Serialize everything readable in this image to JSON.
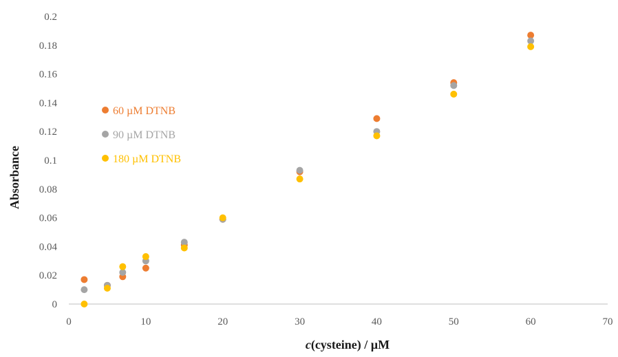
{
  "chart_data": {
    "type": "scatter",
    "title": "",
    "xlabel_italic": "c",
    "xlabel_rest": "(cysteine) / µM",
    "ylabel": "Absorbance",
    "xlim": [
      0,
      70
    ],
    "ylim": [
      0,
      0.2
    ],
    "x_ticks": [
      "0",
      "10",
      "20",
      "30",
      "40",
      "50",
      "60",
      "70"
    ],
    "y_ticks": [
      "0",
      "0.02",
      "0.04",
      "0.06",
      "0.08",
      "0.1",
      "0.12",
      "0.14",
      "0.16",
      "0.18",
      "0.2"
    ],
    "grid": false,
    "legend_position": "left",
    "series": [
      {
        "name": "60 µM DTNB",
        "color": "#ED7D31",
        "x": [
          2,
          5,
          7,
          10,
          15,
          20,
          30,
          40,
          50,
          60
        ],
        "y": [
          0.017,
          0.013,
          0.019,
          0.025,
          0.041,
          0.059,
          0.092,
          0.129,
          0.154,
          0.187
        ]
      },
      {
        "name": "90 µM DTNB",
        "color": "#A5A5A5",
        "x": [
          2,
          5,
          7,
          10,
          15,
          20,
          30,
          40,
          50,
          60
        ],
        "y": [
          0.01,
          0.013,
          0.022,
          0.03,
          0.043,
          0.059,
          0.093,
          0.12,
          0.152,
          0.183
        ]
      },
      {
        "name": "180 µM DTNB",
        "color": "#FFC000",
        "x": [
          2,
          5,
          7,
          10,
          15,
          20,
          30,
          40,
          50,
          60
        ],
        "y": [
          0.0,
          0.011,
          0.026,
          0.033,
          0.039,
          0.06,
          0.087,
          0.117,
          0.146,
          0.179
        ]
      }
    ]
  }
}
